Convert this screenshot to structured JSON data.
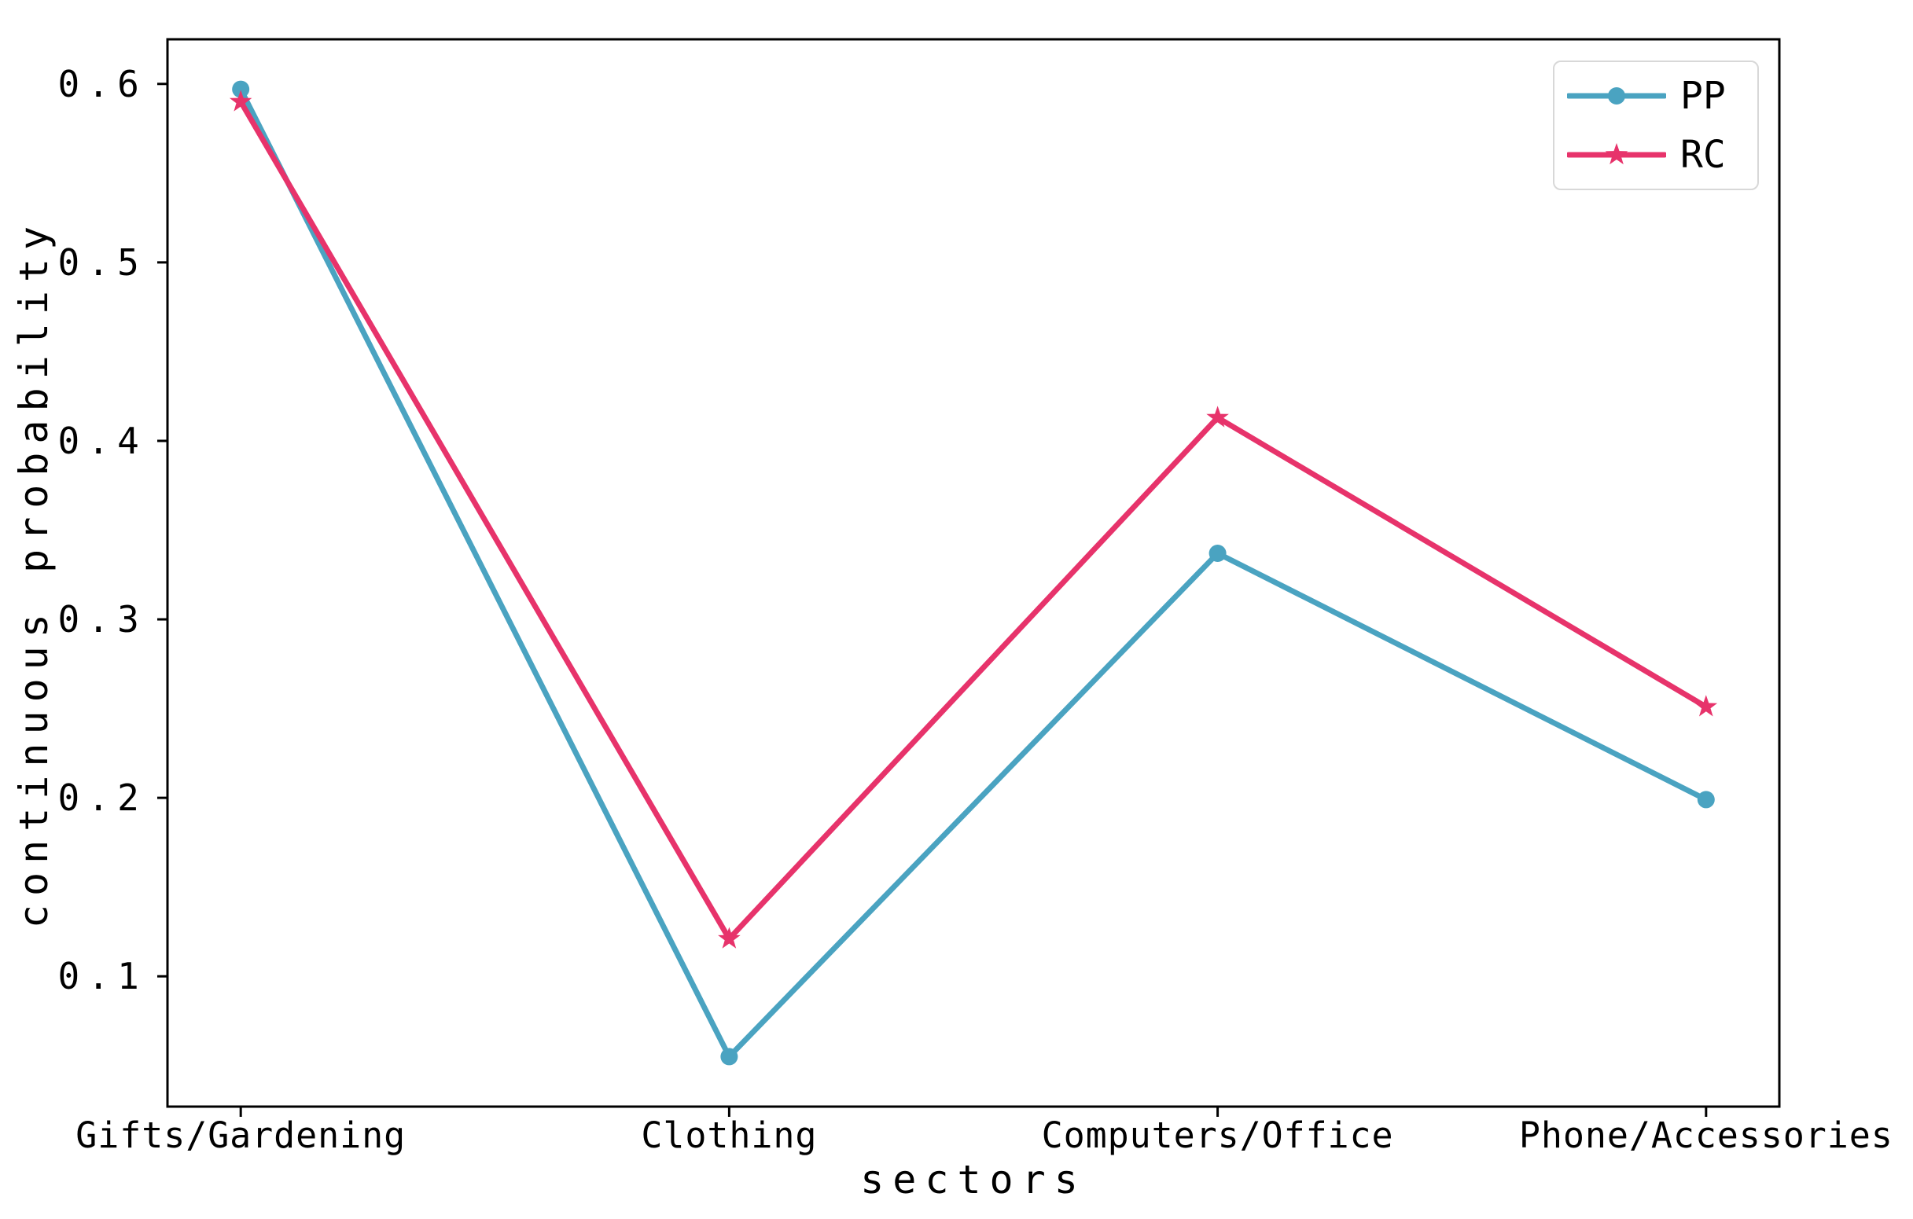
{
  "chart_data": {
    "type": "line",
    "title": "",
    "xlabel": "sectors",
    "ylabel": "continuous probability",
    "categories": [
      "Gifts/Gardening",
      "Clothing",
      "Computers/Office",
      "Phone/Accessories"
    ],
    "series": [
      {
        "name": "PP",
        "color": "#4aa3c1",
        "marker": "circle",
        "values": [
          0.597,
          0.055,
          0.337,
          0.199
        ]
      },
      {
        "name": "RC",
        "color": "#e7336b",
        "marker": "star",
        "values": [
          0.59,
          0.121,
          0.413,
          0.251
        ]
      }
    ],
    "yticks": [
      0.1,
      0.2,
      0.3,
      0.4,
      0.5,
      0.6
    ],
    "ylim": [
      0.027,
      0.625
    ],
    "grid": false,
    "legend_position": "upper right",
    "axis_color": "#000000",
    "legend_border_color": "#d8d8d8"
  }
}
